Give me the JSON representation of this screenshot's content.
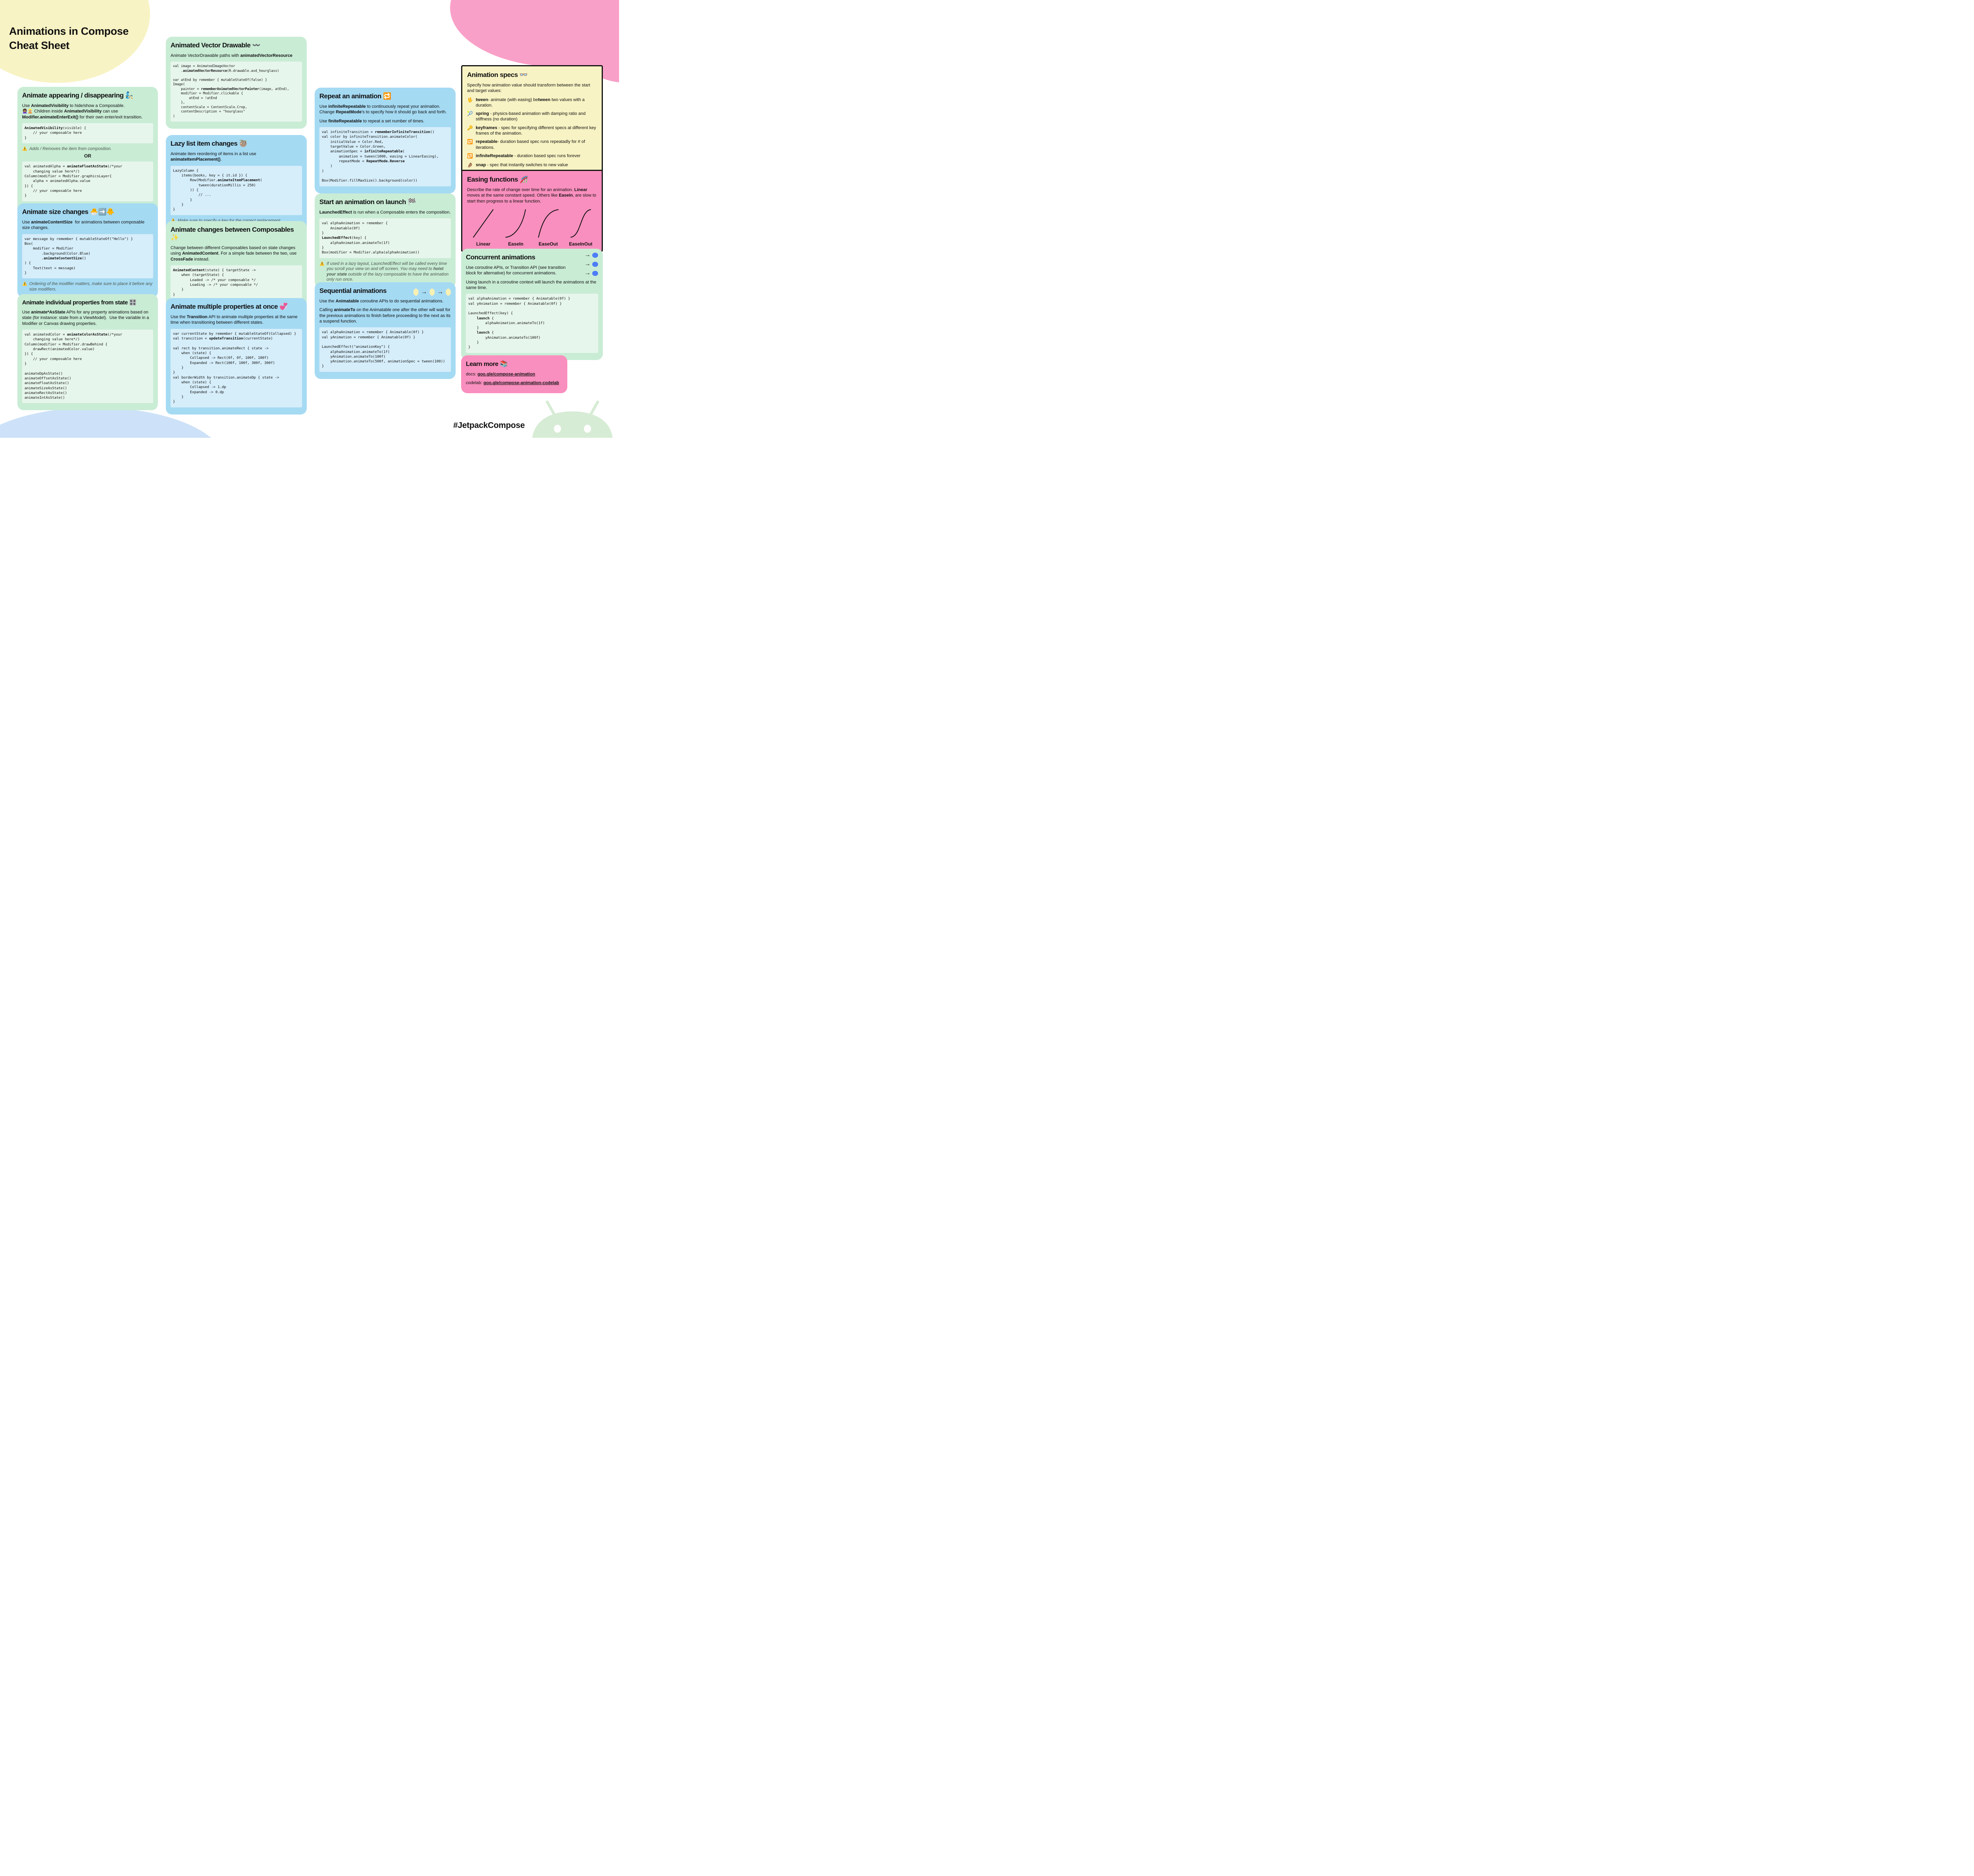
{
  "title": "Animations in Compose\nCheat Sheet",
  "hashtag": "#JetpackCompose",
  "palette": {
    "card_green": "#c9ecd5",
    "card_blue": "#a5daf3",
    "card_yellow": "#f8f3c4",
    "card_pink": "#f98fbe",
    "blob_pink": "#f9a0c8",
    "blob_blue": "#cde2f8",
    "android_green": "#d7ecd5",
    "accent_blue_dot": "#4d7ef7",
    "seq_dot_yellow": "#f7f0b5",
    "warn_text": "#4d584f"
  },
  "cards": {
    "appearing": {
      "title": "Animate appearing / disappearing",
      "emoji": "🧞",
      "p1": "Use **AnimatedVisibility** to hide/show a Composable.\n👩🏽‍🦱👱🏼 Children inside **AnimatedVisibility** can use **Modifier.animateEnterExit()** for their own enter/exit transition.",
      "code1": "**AnimatedVisibility**(visible) {\n    // your composable here\n}",
      "warn1_icon": "⚠️",
      "warn1": "Adds / Removes the item from composition.",
      "or": "OR",
      "code2": "val animatedAlpha = **animateFloatAsState**(/*your\n    changing value here*/)\nColumn(modifier = Modifier.graphicsLayer{\n    alpha = animatedAlpha.value\n}) {\n    // your composable here\n}",
      "warn2_icon": "⚠️",
      "warn2": "Keeps item in the composition - animates its alpha instead"
    },
    "size": {
      "title": "Animate size changes",
      "emoji": "🐣➡️🐥",
      "p1": "Use **animateContentSize**  for animations between composable size changes.",
      "code1": "var message by remember { mutableStateOf(\"Hello\") }\nBox(\n    modifier = Modifier\n        .background(Color.Blue)\n        .**animateContentSize**()\n) {\n    Text(text = message)\n}",
      "warn1_icon": "⚠️",
      "warn1": "Ordering of the modifier matters, make sure to place it before any size modifiers."
    },
    "properties": {
      "title": "Animate individual properties from state",
      "emoji": "🎛️",
      "p1": "Use **animate*AsState** APIs for any property animations based on state (for instance: state from a ViewModel).  Use the variable in a Modifier or Canvas drawing properties.",
      "code1": "val animatedColor = **animateColorAsState**(/*your\n    changing value here*/)\nColumn(modifier = Modifier.drawBehind {\n    drawRect(animatedColor.value)\n}) {\n    // your composable here\n}\n\nanimateDpAsState()\nanimateOffsetAsState()\nanimateFloatAsState()\nanimateSizeAsState()\nanimateRectAsState()\nanimateIntAsState()"
    },
    "vector": {
      "title": "Animated Vector Drawable",
      "emoji": "〰️",
      "p1": "Animate VectorDrawable paths with **animatedVectorResource**",
      "code1": "val image = AnimatedImageVector\n    .**animatedVectorResource**(R.drawable.avd_hourglass)\n\nvar atEnd by remember { mutableStateOf(false) }\nImage(\n    painter = **rememberAnimatedVectorPainter**(image, atEnd),\n    modifier = Modifier.clickable {\n        atEnd = !atEnd\n    },\n    contentScale = ContentScale.Crop,\n    contentDescription = \"hourglass\"\n)"
    },
    "lazy": {
      "title": "Lazy list item changes",
      "emoji": "🦥",
      "p1": "Animate item reordering of items in a list use **animateItemPlacement()**.",
      "code1": "LazyColumn {\n    items(books, key = { it.id }) {\n        Row(Modifier.**animateItemPlacement**(\n            tween(durationMillis = 250)\n        )) {\n            // ...\n        }\n    }\n}",
      "warn1_icon": "⚠️",
      "warn1": "Make sure to specify a key for the correct replacement.",
      "warn2_icon": "🔜",
      "warn2": "Additions and deletions are coming soon."
    },
    "between": {
      "title": "Animate changes between Composables",
      "emoji": "✨",
      "p1": "Change between different Composables based on state changes using **AnimatedContent**. For a simple fade between the two, use **CrossFade** instead.",
      "code1": "**AnimatedContent**(state) { targetState ->\n    when (targetState) {\n        Loaded -> /* your composable */\n        Loading -> /* your composable */\n    }\n}"
    },
    "multiple": {
      "title": "Animate multiple properties at once",
      "emoji": "💞",
      "p1": "Use the **Transition** API to animate multiple properties at the same time when transitioning between different states.",
      "code1": "var currentState by remember { mutableStateOf(Collapsed) }\nval transition = **updateTransition**(currentState)\n\nval rect by transition.animateRect { state ->\n    when (state) {\n        Collapsed -> Rect(0f, 0f, 100f, 100f)\n        Expanded -> Rect(100f, 100f, 300f, 300f)\n    }\n}\nval borderWidth by transition.animateDp { state ->\n    when (state) {\n        Collapsed -> 1.dp\n        Expanded -> 0.dp\n    }\n}"
    },
    "repeat": {
      "title": "Repeat an animation",
      "emoji": "🔁",
      "p1": "Use **infiniteRepeatable** to continuously repeat your animation. Change **RepeatMode**'s to specify how it should go back and forth.",
      "p2": "Use **finiteRepeatable** to repeat a set number of times.",
      "code1": "val infiniteTransition = **rememberInfiniteTransition**()\nval color by infiniteTransition.animateColor(\n    initialValue = Color.Red,\n    targetValue = Color.Green,\n    animationSpec = **infiniteRepeatable**(\n        animation = tween(1000, easing = LinearEasing),\n        repeatMode = **RepeatMode.Reverse**\n    )\n)\n\nBox(Modifier.fillMaxSize().background(color))"
    },
    "launch": {
      "title": "Start an animation on launch",
      "emoji": "🏁",
      "p1": "**LaunchedEffect** is run when a Composable enters the composition.",
      "code1": "val alphaAnimation = remember {\n    Animatable(0f)\n}\n**LaunchedEffect**(key) {\n    alphaAnimation.animateTo(1f)\n}\nBox(modifier = Modifier.alpha(alphaAnimation))",
      "warn1_icon": "⚠️",
      "warn1": "If used in a lazy layout, LaunchedEffect will be called every time you scroll your view on and off screen.  You may need to **hoist your state** outside of the lazy composable to have the animation only run once."
    },
    "sequential": {
      "title": "Sequential animations",
      "p1": "Use the **Animatable** coroutine APIs to do sequential animations.",
      "p2": "Calling **animateTo** on the Animatable one after the other will wait for the previous animations to finish before proceeding to the next as its a suspend function.",
      "code1": "val alphaAnimation = remember { Animatable(0f) }\nval yAnimation = remember { Animatable(0f) }\n\nLaunchedEffect(\"animationKey\") {\n    alphaAnimation.animateTo(1f)\n    yAnimation.animateTo(100f)\n    yAnimation.animateTo(500f, animationSpec = tween(100))\n}"
    },
    "specs": {
      "title": "Animation specs",
      "emoji": "👓",
      "p1": "Specify how animation value should transform between the start and target values:",
      "items": [
        {
          "emoji": "🖖",
          "text": "**tween**- animate (with easing) be**tween** two values with a duration."
        },
        {
          "emoji": "🎾",
          "text": "**spring** - physics-based animation with damping ratio and stiffness (no duration)"
        },
        {
          "emoji": "🔑",
          "text": "**keyframes** - spec for specifying different specs at  different key frames of the animation."
        },
        {
          "emoji": "🔂",
          "text": "**repeatable**- duration based spec runs repeatadly for # of iterations."
        },
        {
          "emoji": "🔁",
          "text": "**infiniteRepeatable** - duration based spec runs forever"
        },
        {
          "emoji": "🤌🏽",
          "text": "**snap** - spec that instantly switches to new value"
        }
      ]
    },
    "easing": {
      "title": "Easing functions",
      "emoji": "🎢",
      "p1": "Describe the rate of change over time for an animation. **Linear** moves at the same constant speed. Others like **EaseIn**, are slow to start then progress to a linear function.",
      "labels": [
        "Linear",
        "EaseIn",
        "EaseOut",
        "EaseInOut"
      ]
    },
    "concurrent": {
      "title": "Concurrent animations",
      "p1": "Use coroutine APIs, or Transition API (see transition block for alternative) for concurrent animations.",
      "p2": "Using launch in a coroutine context will launch the animations at the same time.",
      "code1": "val alphaAnimation = remember { Animatable(0f) }\nval yAnimation = remember { Animatable(0f) }\n\nLaunchedEffect(key) {\n    **launch** {\n        alphaAnimation.animateTo(1f)\n    }\n    **launch** {\n        yAnimation.animateTo(100f)\n    }\n}"
    },
    "learn": {
      "title": "Learn more",
      "emoji": "📚",
      "docs_label": "docs: ",
      "docs_link": "goo.gle/compose-animation",
      "codelab_label": "codelab: ",
      "codelab_link": "goo.gle/compose-animation-codelab"
    }
  }
}
